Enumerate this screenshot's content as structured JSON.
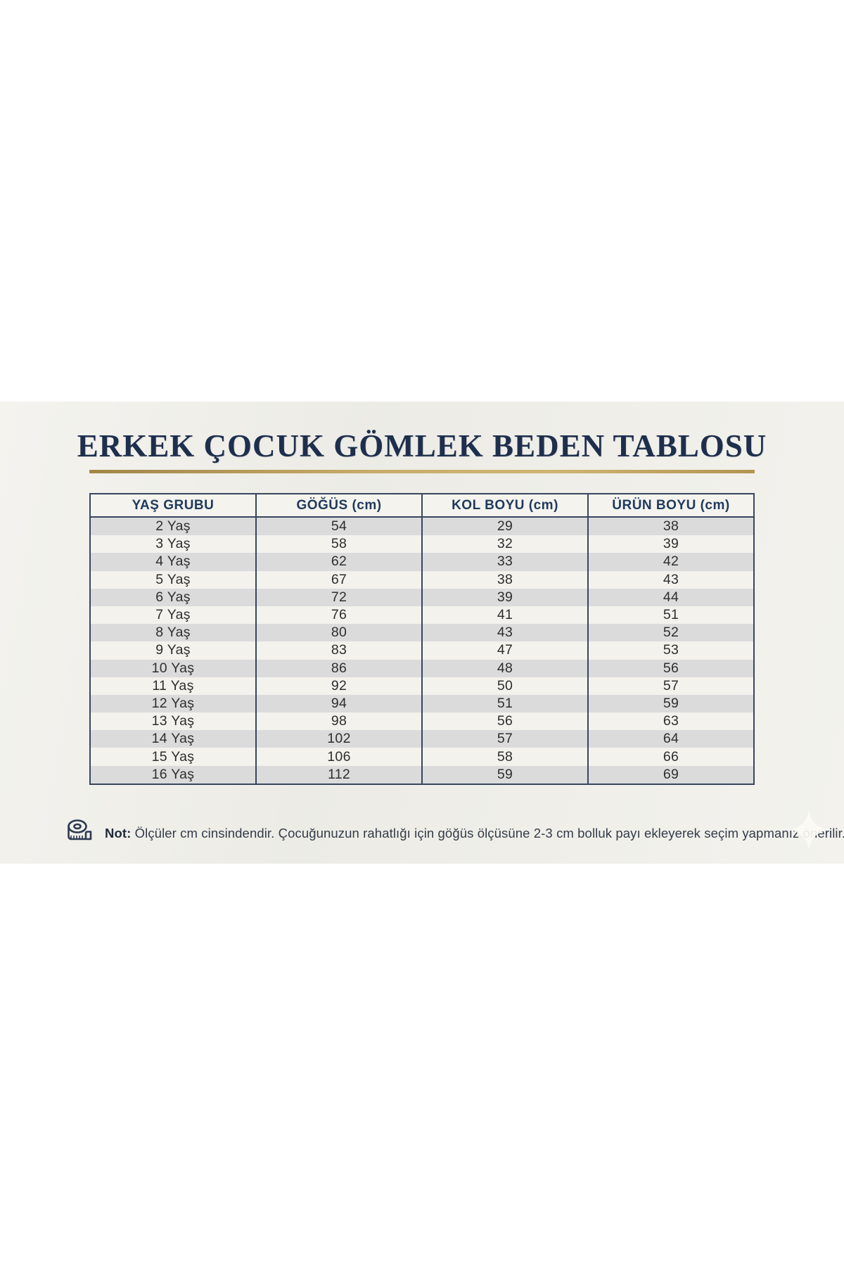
{
  "page": {
    "background_color": "#ffffff",
    "band_color": "#f0efe9"
  },
  "title": "ERKEK ÇOCUK GÖMLEK BEDEN TABLOSU",
  "table": {
    "headers": [
      "YAŞ GRUBU",
      "GÖĞÜS (cm)",
      "KOL BOYU (cm)",
      "ÜRÜN BOYU (cm)"
    ],
    "rows": [
      [
        "2 Yaş",
        "54",
        "29",
        "38"
      ],
      [
        "3 Yaş",
        "58",
        "32",
        "39"
      ],
      [
        "4 Yaş",
        "62",
        "33",
        "42"
      ],
      [
        "5 Yaş",
        "67",
        "38",
        "43"
      ],
      [
        "6 Yaş",
        "72",
        "39",
        "44"
      ],
      [
        "7 Yaş",
        "76",
        "41",
        "51"
      ],
      [
        "8 Yaş",
        "80",
        "43",
        "52"
      ],
      [
        "9 Yaş",
        "83",
        "47",
        "53"
      ],
      [
        "10 Yaş",
        "86",
        "48",
        "56"
      ],
      [
        "11 Yaş",
        "92",
        "50",
        "57"
      ],
      [
        "12 Yaş",
        "94",
        "51",
        "59"
      ],
      [
        "13 Yaş",
        "98",
        "56",
        "63"
      ],
      [
        "14 Yaş",
        "102",
        "57",
        "64"
      ],
      [
        "15 Yaş",
        "106",
        "58",
        "66"
      ],
      [
        "16 Yaş",
        "112",
        "59",
        "69"
      ]
    ]
  },
  "note": {
    "label": "Not:",
    "text": " Ölçüler cm cinsindendir. Çocuğunuzun rahatlığı için göğüs ölçüsüne 2-3 cm bolluk payı ekleyerek seçim yapmanız önerilir.",
    "icon": "measuring-tape-icon"
  },
  "colors": {
    "title_navy": "#1e2f4d",
    "gold_rule": "#c9ad6b",
    "table_border": "#39455e",
    "header_text": "#1f3a5c",
    "row_gray": "#dbdbdc",
    "row_light": "#f3f2ed",
    "cell_text": "#2e2e2e",
    "note_text": "#333b49"
  }
}
